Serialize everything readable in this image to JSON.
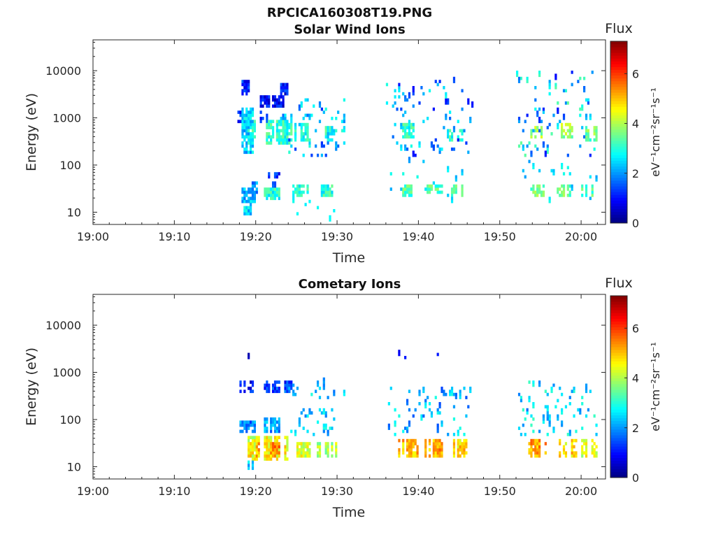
{
  "figure": {
    "title": "RPCICA160308T19.PNG"
  },
  "chart_data": [
    {
      "type": "heatmap",
      "title": "Solar Wind Ions",
      "xlabel": "Time",
      "ylabel": "Energy (eV)",
      "x_ticks": [
        "19:00",
        "19:10",
        "19:20",
        "19:30",
        "19:40",
        "19:50",
        "20:00"
      ],
      "x_range_minutes": [
        0,
        63
      ],
      "y_ticks": [
        "10",
        "100",
        "1000",
        "10000"
      ],
      "y_scale": "log",
      "y_range": [
        5.5,
        45000
      ],
      "colorbar": {
        "title": "Flux",
        "label": "eV⁻¹cm⁻²sr⁻¹s⁻¹",
        "ticks": [
          "0",
          "2",
          "4",
          "6"
        ],
        "range": [
          0,
          7.3
        ],
        "colormap": "jet"
      },
      "blobs": [
        {
          "t0": 17.5,
          "t1": 18.5,
          "e0": 900,
          "e1": 1400,
          "v": 1.3
        },
        {
          "t0": 18.3,
          "t1": 19.2,
          "e0": 3500,
          "e1": 5500,
          "v": 1.1
        },
        {
          "t0": 18.0,
          "t1": 20.0,
          "e0": 200,
          "e1": 1500,
          "v": 2.4
        },
        {
          "t0": 19.0,
          "t1": 20.0,
          "e0": 300,
          "e1": 900,
          "v": 3.0
        },
        {
          "t0": 20.5,
          "t1": 22.0,
          "e0": 900,
          "e1": 1300,
          "v": 1.4
        },
        {
          "t0": 21.3,
          "t1": 24.5,
          "e0": 300,
          "e1": 900,
          "v": 3.0
        },
        {
          "t0": 23.0,
          "t1": 24.5,
          "e0": 800,
          "e1": 1200,
          "v": 2.2
        },
        {
          "t0": 20.5,
          "t1": 23.5,
          "e0": 1800,
          "e1": 2600,
          "v": 0.9
        },
        {
          "t0": 23.0,
          "t1": 24.0,
          "e0": 3500,
          "e1": 5000,
          "v": 1.0
        },
        {
          "t0": 18.0,
          "t1": 20.0,
          "e0": 17,
          "e1": 30,
          "v": 2.3
        },
        {
          "t0": 19.5,
          "t1": 20.5,
          "e0": 28,
          "e1": 40,
          "v": 2.0
        },
        {
          "t0": 21.0,
          "t1": 22.8,
          "e0": 20,
          "e1": 30,
          "v": 3.0
        },
        {
          "t0": 18.5,
          "t1": 19.5,
          "e0": 10,
          "e1": 18,
          "v": 2.5
        },
        {
          "t0": 22.0,
          "t1": 23.0,
          "e0": 25,
          "e1": 45,
          "v": 1.8
        },
        {
          "t0": 21.5,
          "t1": 23.0,
          "e0": 55,
          "e1": 70,
          "v": 1.2
        },
        {
          "t0": 24.5,
          "t1": 26.5,
          "e0": 22,
          "e1": 35,
          "v": 3.0
        },
        {
          "t0": 24.8,
          "t1": 26.5,
          "e0": 350,
          "e1": 700,
          "v": 3.0
        },
        {
          "t0": 28.0,
          "t1": 29.5,
          "e0": 22,
          "e1": 35,
          "v": 3.0
        },
        {
          "t0": 28.5,
          "t1": 30.0,
          "e0": 350,
          "e1": 600,
          "v": 3.0
        },
        {
          "t0": 38.0,
          "t1": 39.5,
          "e0": 22,
          "e1": 35,
          "v": 3.3
        },
        {
          "t0": 38.0,
          "t1": 39.5,
          "e0": 400,
          "e1": 700,
          "v": 3.0
        },
        {
          "t0": 41.0,
          "t1": 43.0,
          "e0": 25,
          "e1": 35,
          "v": 3.3
        },
        {
          "t0": 44.0,
          "t1": 45.5,
          "e0": 22,
          "e1": 35,
          "v": 3.3
        },
        {
          "t0": 43.5,
          "t1": 45.5,
          "e0": 350,
          "e1": 500,
          "v": 3.0
        },
        {
          "t0": 53.5,
          "t1": 55.5,
          "e0": 22,
          "e1": 35,
          "v": 3.6
        },
        {
          "t0": 53.5,
          "t1": 55.5,
          "e0": 400,
          "e1": 600,
          "v": 3.8
        },
        {
          "t0": 57.0,
          "t1": 59.0,
          "e0": 22,
          "e1": 35,
          "v": 3.4
        },
        {
          "t0": 57.5,
          "t1": 59.0,
          "e0": 400,
          "e1": 700,
          "v": 3.8
        },
        {
          "t0": 60.0,
          "t1": 61.5,
          "e0": 22,
          "e1": 35,
          "v": 3.2
        },
        {
          "t0": 60.5,
          "t1": 62.0,
          "e0": 350,
          "e1": 600,
          "v": 3.6
        }
      ],
      "scatter_regions": [
        {
          "t0": 24,
          "t1": 31,
          "e0": 150,
          "e1": 2500,
          "n": 60,
          "vmin": 1.2,
          "vmax": 3.2
        },
        {
          "t0": 36,
          "t1": 47,
          "e0": 150,
          "e1": 6000,
          "n": 80,
          "vmin": 1.0,
          "vmax": 3.0
        },
        {
          "t0": 52,
          "t1": 62,
          "e0": 150,
          "e1": 9000,
          "n": 80,
          "vmin": 1.0,
          "vmax": 3.5
        },
        {
          "t0": 36,
          "t1": 47,
          "e0": 15,
          "e1": 120,
          "n": 18,
          "vmin": 2.0,
          "vmax": 3.0
        },
        {
          "t0": 52,
          "t1": 62,
          "e0": 15,
          "e1": 120,
          "n": 18,
          "vmin": 2.0,
          "vmax": 3.0
        },
        {
          "t0": 24,
          "t1": 31,
          "e0": 6,
          "e1": 20,
          "n": 8,
          "vmin": 2.5,
          "vmax": 3.0
        }
      ]
    },
    {
      "type": "heatmap",
      "title": "Cometary Ions",
      "xlabel": "Time",
      "ylabel": "Energy (eV)",
      "x_ticks": [
        "19:00",
        "19:10",
        "19:20",
        "19:30",
        "19:40",
        "19:50",
        "20:00"
      ],
      "x_range_minutes": [
        0,
        63
      ],
      "y_ticks": [
        "10",
        "100",
        "1000",
        "10000"
      ],
      "y_scale": "log",
      "y_range": [
        5.5,
        45000
      ],
      "colorbar": {
        "title": "Flux",
        "label": "eV⁻¹cm⁻²sr⁻¹s⁻¹",
        "ticks": [
          "0",
          "2",
          "4",
          "6"
        ],
        "range": [
          0,
          7.3
        ],
        "colormap": "jet"
      },
      "blobs": [
        {
          "t0": 18.0,
          "t1": 20.5,
          "e0": 14,
          "e1": 40,
          "v": 4.3
        },
        {
          "t0": 19.0,
          "t1": 20.5,
          "e0": 16,
          "e1": 30,
          "v": 5.0
        },
        {
          "t0": 21.0,
          "t1": 24.0,
          "e0": 14,
          "e1": 40,
          "v": 4.6
        },
        {
          "t0": 21.8,
          "t1": 23.2,
          "e0": 18,
          "e1": 32,
          "v": 5.4
        },
        {
          "t0": 18.0,
          "t1": 20.5,
          "e0": 55,
          "e1": 85,
          "v": 1.8
        },
        {
          "t0": 21.0,
          "t1": 23.0,
          "e0": 55,
          "e1": 110,
          "v": 2.0
        },
        {
          "t0": 18.0,
          "t1": 20.0,
          "e0": 400,
          "e1": 600,
          "v": 1.0
        },
        {
          "t0": 21.0,
          "t1": 24.5,
          "e0": 400,
          "e1": 600,
          "v": 1.3
        },
        {
          "t0": 19.0,
          "t1": 20.0,
          "e0": 2000,
          "e1": 2300,
          "v": 0.8
        },
        {
          "t0": 19.0,
          "t1": 19.7,
          "e0": 10,
          "e1": 13,
          "v": 2.5
        },
        {
          "t0": 24.5,
          "t1": 27.0,
          "e0": 16,
          "e1": 32,
          "v": 4.3
        },
        {
          "t0": 27.5,
          "t1": 30.0,
          "e0": 16,
          "e1": 32,
          "v": 4.0
        },
        {
          "t0": 37.5,
          "t1": 40.0,
          "e0": 16,
          "e1": 35,
          "v": 5.0
        },
        {
          "t0": 40.5,
          "t1": 43.0,
          "e0": 16,
          "e1": 35,
          "v": 5.2
        },
        {
          "t0": 44.0,
          "t1": 46.0,
          "e0": 16,
          "e1": 35,
          "v": 4.8
        },
        {
          "t0": 53.5,
          "t1": 56.0,
          "e0": 16,
          "e1": 35,
          "v": 5.2
        },
        {
          "t0": 57.0,
          "t1": 59.5,
          "e0": 16,
          "e1": 35,
          "v": 4.8
        },
        {
          "t0": 60.0,
          "t1": 62.0,
          "e0": 16,
          "e1": 35,
          "v": 4.3
        }
      ],
      "scatter_regions": [
        {
          "t0": 24,
          "t1": 31,
          "e0": 45,
          "e1": 600,
          "n": 45,
          "vmin": 1.8,
          "vmax": 3.0
        },
        {
          "t0": 36,
          "t1": 47,
          "e0": 45,
          "e1": 500,
          "n": 60,
          "vmin": 1.5,
          "vmax": 3.0
        },
        {
          "t0": 52,
          "t1": 62,
          "e0": 45,
          "e1": 600,
          "n": 70,
          "vmin": 1.8,
          "vmax": 3.2
        },
        {
          "t0": 36,
          "t1": 47,
          "e0": 1800,
          "e1": 2500,
          "n": 3,
          "vmin": 0.8,
          "vmax": 1.2
        }
      ]
    }
  ]
}
